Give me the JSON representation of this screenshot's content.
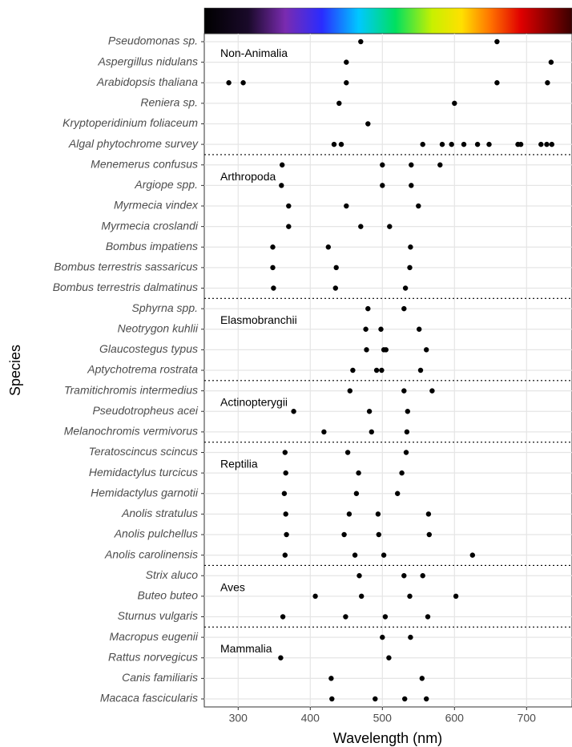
{
  "chart_data": {
    "type": "dot",
    "x_label": "Wavelength (nm)",
    "y_label": "Species",
    "xlim": [
      253,
      763
    ],
    "xticks": [
      300,
      400,
      500,
      600,
      700
    ],
    "grid": true,
    "color": "#000000",
    "groups": [
      {
        "name": "Non-Animalia",
        "species": [
          {
            "name": "Pseudomonas sp.",
            "values": [
              470,
              659
            ]
          },
          {
            "name": "Aspergillus nidulans",
            "values": [
              450,
              734
            ]
          },
          {
            "name": "Arabidopsis thaliana",
            "values": [
              287,
              307,
              450,
              659,
              729
            ]
          },
          {
            "name": "Reniera sp.",
            "values": [
              440,
              600
            ]
          },
          {
            "name": "Kryptoperidinium foliaceum",
            "values": [
              480
            ]
          },
          {
            "name": "Algal phytochrome survey",
            "values": [
              433,
              443,
              556,
              583,
              596,
              613,
              632,
              648,
              688,
              692,
              720,
              728,
              735
            ]
          }
        ]
      },
      {
        "name": "Arthropoda",
        "species": [
          {
            "name": "Menemerus confusus",
            "values": [
              361,
              500,
              540,
              580
            ]
          },
          {
            "name": "Argiope spp.",
            "values": [
              360,
              500,
              540
            ]
          },
          {
            "name": "Myrmecia vindex",
            "values": [
              370,
              450,
              550
            ]
          },
          {
            "name": "Myrmecia croslandi",
            "values": [
              370,
              470,
              510
            ]
          },
          {
            "name": "Bombus impatiens",
            "values": [
              348,
              425,
              539
            ]
          },
          {
            "name": "Bombus terrestris sassaricus",
            "values": [
              348,
              436,
              538
            ]
          },
          {
            "name": "Bombus terrestris dalmatinus",
            "values": [
              349,
              435,
              532
            ]
          }
        ]
      },
      {
        "name": "Elasmobranchii",
        "species": [
          {
            "name": "Sphyrna spp.",
            "values": [
              480,
              530
            ]
          },
          {
            "name": "Neotrygon kuhlii",
            "values": [
              477,
              498,
              551
            ]
          },
          {
            "name": "Glaucostegus typus",
            "values": [
              478,
              502,
              505,
              561
            ]
          },
          {
            "name": "Aptychotrema rostrata",
            "values": [
              459,
              492,
              499,
              553
            ]
          }
        ]
      },
      {
        "name": "Actinopterygii",
        "species": [
          {
            "name": "Tramitichromis intermedius",
            "values": [
              455,
              530,
              569
            ]
          },
          {
            "name": "Pseudotropheus acei",
            "values": [
              377,
              482,
              535
            ]
          },
          {
            "name": "Melanochromis vermivorus",
            "values": [
              419,
              485,
              534
            ]
          }
        ]
      },
      {
        "name": "Reptilia",
        "species": [
          {
            "name": "Teratoscincus scincus",
            "values": [
              365,
              452,
              533
            ]
          },
          {
            "name": "Hemidactylus turcicus",
            "values": [
              366,
              467,
              527
            ]
          },
          {
            "name": "Hemidactylus garnotii",
            "values": [
              364,
              464,
              521
            ]
          },
          {
            "name": "Anolis stratulus",
            "values": [
              366,
              454,
              494,
              564
            ]
          },
          {
            "name": "Anolis pulchellus",
            "values": [
              367,
              447,
              495,
              565
            ]
          },
          {
            "name": "Anolis carolinensis",
            "values": [
              365,
              462,
              502,
              625
            ]
          }
        ]
      },
      {
        "name": "Aves",
        "species": [
          {
            "name": "Strix aluco",
            "values": [
              468,
              530,
              556
            ]
          },
          {
            "name": "Buteo buteo",
            "values": [
              407,
              471,
              538,
              602
            ]
          },
          {
            "name": "Sturnus vulgaris",
            "values": [
              362,
              449,
              504,
              563
            ]
          }
        ]
      },
      {
        "name": "Mammalia",
        "species": [
          {
            "name": "Macropus eugenii",
            "values": [
              500,
              539
            ]
          },
          {
            "name": "Rattus norvegicus",
            "values": [
              359,
              509
            ]
          },
          {
            "name": "Canis familiaris",
            "values": [
              429,
              555
            ]
          },
          {
            "name": "Macaca fascicularis",
            "values": [
              430,
              490,
              531,
              561
            ]
          }
        ]
      }
    ]
  }
}
